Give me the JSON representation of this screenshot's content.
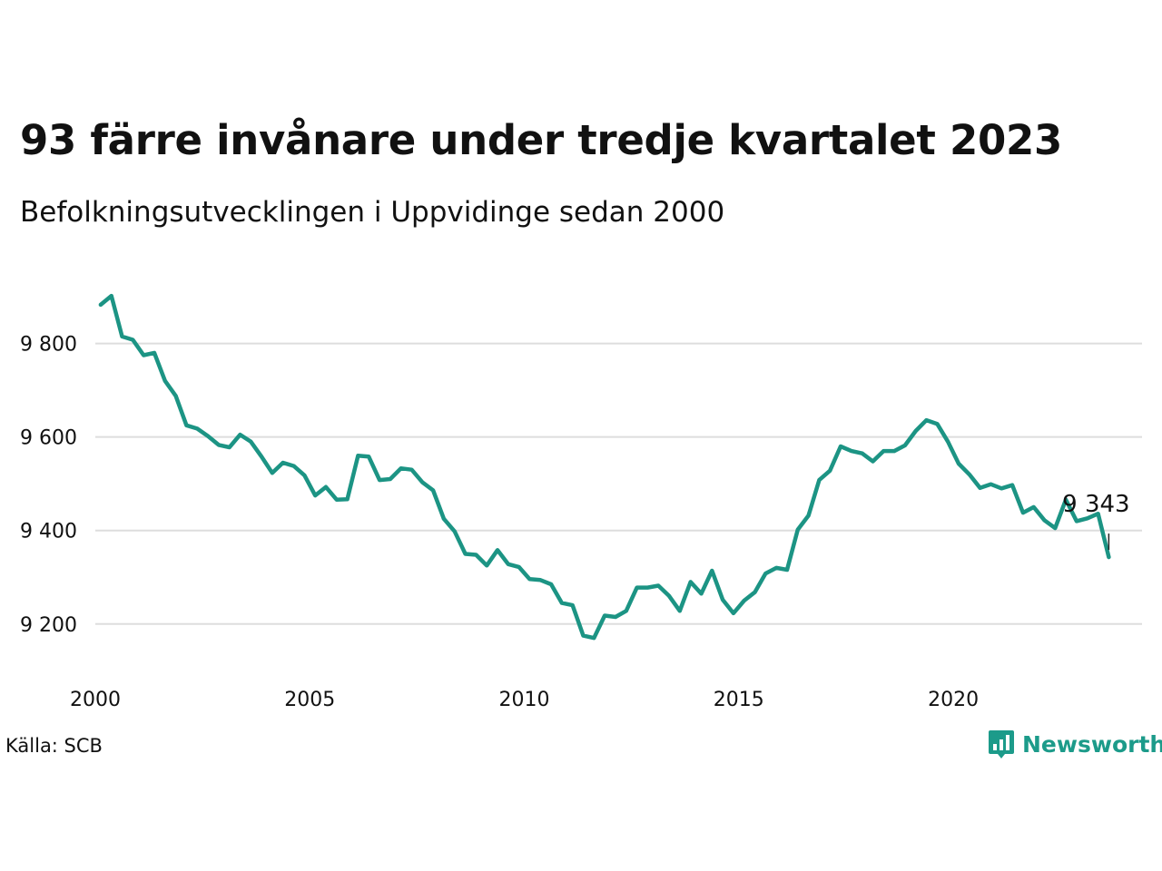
{
  "title": "93 färre invånare under tredje kvartalet 2023",
  "subtitle": "Befolkningsutvecklingen i Uppvidinge sedan 2000",
  "source": "Källa: SCB",
  "brand": {
    "name": "Newsworthy",
    "icon": "bar-chart-logo-icon",
    "color": "#1c9b8a"
  },
  "colors": {
    "line": "#1c9484",
    "grid": "#dddddd"
  },
  "chart_data": {
    "type": "line",
    "title": "93 färre invånare under tredje kvartalet 2023",
    "subtitle": "Befolkningsutvecklingen i Uppvidinge sedan 2000",
    "xlabel": "",
    "ylabel": "",
    "x_ticks": [
      {
        "value": 2000,
        "label": "2000"
      },
      {
        "value": 2005,
        "label": "2005"
      },
      {
        "value": 2010,
        "label": "2010"
      },
      {
        "value": 2015,
        "label": "2015"
      },
      {
        "value": 2020,
        "label": "2020"
      }
    ],
    "y_ticks": [
      {
        "value": 9200,
        "label": "9 200"
      },
      {
        "value": 9400,
        "label": "9 400"
      },
      {
        "value": 9600,
        "label": "9 600"
      },
      {
        "value": 9800,
        "label": "9 800"
      }
    ],
    "xlim": [
      2000,
      2024.4
    ],
    "ylim": [
      9118,
      9972
    ],
    "grid": "horizontal",
    "end_label": "9 343",
    "series": [
      {
        "quarters_start": "2000-Q1",
        "values": [
          9883,
          9902,
          9815,
          9808,
          9775,
          9780,
          9720,
          9688,
          9625,
          9618,
          9602,
          9583,
          9578,
          9605,
          9590,
          9558,
          9523,
          9545,
          9538,
          9518,
          9475,
          9493,
          9466,
          9467,
          9560,
          9558,
          9508,
          9510,
          9533,
          9530,
          9503,
          9486,
          9425,
          9398,
          9350,
          9348,
          9325,
          9358,
          9328,
          9322,
          9296,
          9294,
          9285,
          9245,
          9240,
          9175,
          9170,
          9218,
          9215,
          9228,
          9278,
          9278,
          9282,
          9260,
          9228,
          9290,
          9265,
          9314,
          9252,
          9223,
          9250,
          9268,
          9308,
          9320,
          9316,
          9402,
          9432,
          9508,
          9528,
          9580,
          9570,
          9565,
          9548,
          9570,
          9570,
          9582,
          9613,
          9636,
          9628,
          9590,
          9543,
          9520,
          9491,
          9499,
          9490,
          9497,
          9438,
          9450,
          9422,
          9405,
          9466,
          9420,
          9426,
          9436,
          9343
        ]
      }
    ]
  }
}
